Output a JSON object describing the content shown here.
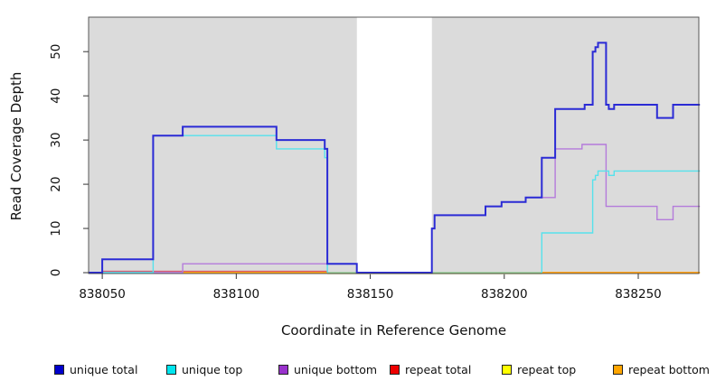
{
  "chart_data": {
    "type": "line",
    "subtype": "step-coverage",
    "title": "",
    "xlabel": "Coordinate in Reference Genome",
    "ylabel": "Read Coverage Depth",
    "x_ticks": [
      838050,
      838100,
      838150,
      838200,
      838250
    ],
    "y_ticks": [
      0,
      10,
      20,
      30,
      40,
      50
    ],
    "xlim": [
      838044.9,
      838272.6
    ],
    "ylim": [
      -0.2,
      57.8
    ],
    "grid": false,
    "panel_background": "#DBDBDB",
    "masked_region": {
      "x_start": 838145,
      "x_end": 838173,
      "color": "#FFFFFF"
    },
    "baseline_blend_segment": {
      "x_start": 838134,
      "x_end": 838214,
      "color": "#8CCF8C",
      "meaning": "unique top and repeat top overlapping at 0"
    },
    "series": [
      {
        "name": "unique total",
        "legend_color": "#0000CC",
        "line_color": "#2B2BD5",
        "line_width": 2,
        "segments": [
          {
            "steps": [
              [
                838045,
                0
              ],
              [
                838050,
                3
              ],
              [
                838069,
                31
              ],
              [
                838080,
                33
              ],
              [
                838115,
                30
              ],
              [
                838133,
                28
              ],
              [
                838134,
                2
              ],
              [
                838145,
                0
              ],
              [
                838173,
                10
              ],
              [
                838174,
                13
              ],
              [
                838193,
                15
              ],
              [
                838199,
                16
              ],
              [
                838208,
                17
              ],
              [
                838214,
                26
              ],
              [
                838219,
                37
              ],
              [
                838230,
                38
              ],
              [
                838233,
                50
              ],
              [
                838234,
                51
              ],
              [
                838235,
                52
              ],
              [
                838238,
                38
              ],
              [
                838239,
                37
              ],
              [
                838241,
                38
              ],
              [
                838257,
                35
              ],
              [
                838263,
                38
              ]
            ],
            "x_end": 838273
          }
        ]
      },
      {
        "name": "unique top",
        "legend_color": "#00E5EE",
        "line_color": "#56E2EC",
        "line_width": 1.4,
        "segments": [
          {
            "steps": [
              [
                838045,
                0
              ],
              [
                838069,
                31
              ],
              [
                838115,
                28
              ],
              [
                838133,
                26
              ],
              [
                838134,
                0
              ]
            ],
            "x_end": 838134
          },
          {
            "steps": [
              [
                838214,
                0
              ],
              [
                838214,
                9
              ],
              [
                838233,
                21
              ],
              [
                838234,
                22
              ],
              [
                838235,
                23
              ],
              [
                838239,
                22
              ],
              [
                838241,
                23
              ]
            ],
            "x_end": 838273
          }
        ]
      },
      {
        "name": "unique bottom",
        "legend_color": "#9932CC",
        "line_color": "#B47BDB",
        "line_width": 1.4,
        "segments": [
          {
            "steps": [
              [
                838045,
                0
              ],
              [
                838080,
                2
              ],
              [
                838145,
                0
              ],
              [
                838173,
                10
              ],
              [
                838174,
                13
              ],
              [
                838193,
                15
              ],
              [
                838199,
                16
              ],
              [
                838208,
                17
              ],
              [
                838219,
                28
              ],
              [
                838229,
                29
              ],
              [
                838238,
                15
              ],
              [
                838257,
                12
              ],
              [
                838263,
                15
              ]
            ],
            "x_end": 838273
          }
        ]
      },
      {
        "name": "repeat total",
        "legend_color": "#EE0000",
        "line_color": "#D6556A",
        "line_width": 1.3,
        "segments": [
          {
            "steps": [
              [
                838050,
                0
              ]
            ],
            "x_end": 838134
          }
        ]
      },
      {
        "name": "repeat top",
        "legend_color": "#FFFF00",
        "line_color": "#EFEBB4",
        "line_width": 1.3,
        "segments": [
          {
            "steps": [
              [
                838134,
                0
              ]
            ],
            "x_end": 838214
          }
        ]
      },
      {
        "name": "repeat bottom",
        "legend_color": "#FFA500",
        "line_color": "#FFA41E",
        "line_width": 2,
        "segments": [
          {
            "steps": [
              [
                838080,
                0
              ]
            ],
            "x_end": 838134
          },
          {
            "steps": [
              [
                838214,
                0
              ]
            ],
            "x_end": 838273
          }
        ]
      }
    ],
    "legend": [
      {
        "label": "unique total",
        "color": "#0000CC"
      },
      {
        "label": "unique top",
        "color": "#00E5EE"
      },
      {
        "label": "unique bottom",
        "color": "#9932CC"
      },
      {
        "label": "repeat total",
        "color": "#EE0000"
      },
      {
        "label": "repeat top",
        "color": "#FFFF00"
      },
      {
        "label": "repeat bottom",
        "color": "#FFA500"
      }
    ]
  }
}
